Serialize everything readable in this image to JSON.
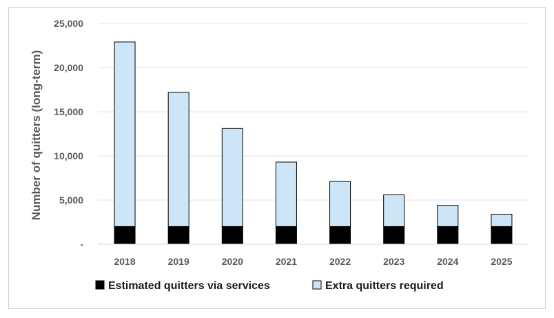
{
  "chart_data": {
    "type": "bar",
    "stacked": true,
    "categories": [
      "2018",
      "2019",
      "2020",
      "2021",
      "2022",
      "2023",
      "2024",
      "2025"
    ],
    "series": [
      {
        "name": "Estimated quitters via services",
        "color": "#000000",
        "values": [
          2000,
          2000,
          2000,
          2000,
          2000,
          2000,
          2000,
          2000
        ]
      },
      {
        "name": "Extra quitters required",
        "color": "#cce6f7",
        "values": [
          20900,
          15200,
          11100,
          7300,
          5100,
          3600,
          2400,
          1400
        ]
      }
    ],
    "ylabel": "Number of quitters (long-term)",
    "ylim": [
      0,
      25000
    ],
    "yticks": [
      0,
      5000,
      10000,
      15000,
      20000,
      25000
    ],
    "ytick_labels": [
      "-",
      "5,000",
      "10,000",
      "15,000",
      "20,000",
      "25,000"
    ],
    "grid": true,
    "legend_position": "bottom"
  }
}
